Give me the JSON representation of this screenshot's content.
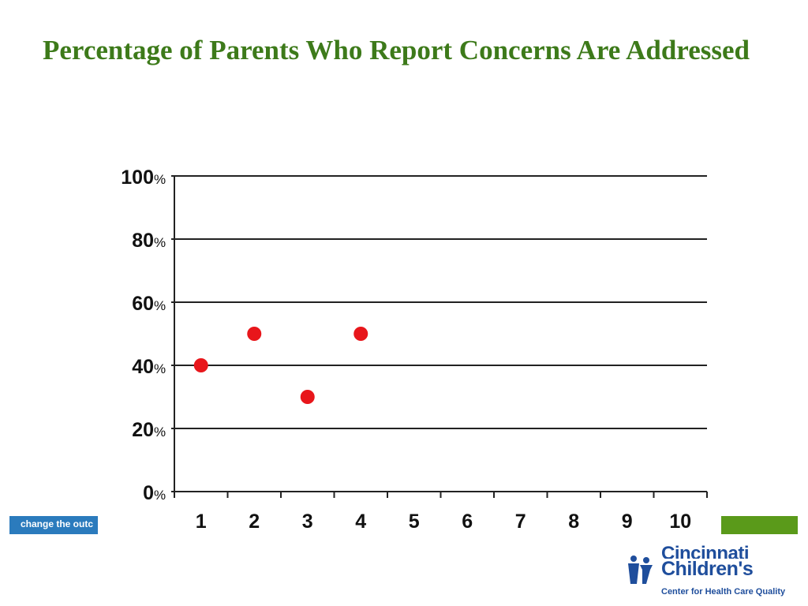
{
  "slide": {
    "title": "Percentage of Parents Who Report Concerns Are Addressed"
  },
  "footer": {
    "tagline": "change the outc",
    "left_bar_color": "#2b7bbd",
    "right_bar_color": "#5a9a1a"
  },
  "logo": {
    "line1": "Cincinnati",
    "line2": "Children's",
    "tagline": "Center for Health Care Quality",
    "color": "#1f4e9c"
  },
  "chart_data": {
    "type": "scatter",
    "title": "",
    "xlabel": "",
    "ylabel": "",
    "x_ticks": [
      "1",
      "2",
      "3",
      "4",
      "5",
      "6",
      "7",
      "8",
      "9",
      "10"
    ],
    "y_ticks": [
      {
        "value": 0,
        "number": "0",
        "suffix": "%"
      },
      {
        "value": 20,
        "number": "20",
        "suffix": "%"
      },
      {
        "value": 40,
        "number": "40",
        "suffix": "%"
      },
      {
        "value": 60,
        "number": "60",
        "suffix": "%"
      },
      {
        "value": 80,
        "number": "80",
        "suffix": "%"
      },
      {
        "value": 100,
        "number": "100",
        "suffix": "%"
      }
    ],
    "xlim": [
      0.5,
      10.5
    ],
    "ylim": [
      0,
      100
    ],
    "grid": "horizontal",
    "series": [
      {
        "x": [
          1,
          2,
          3,
          4
        ],
        "y": [
          40,
          50,
          30,
          50
        ],
        "color": "#e8161b"
      }
    ]
  }
}
